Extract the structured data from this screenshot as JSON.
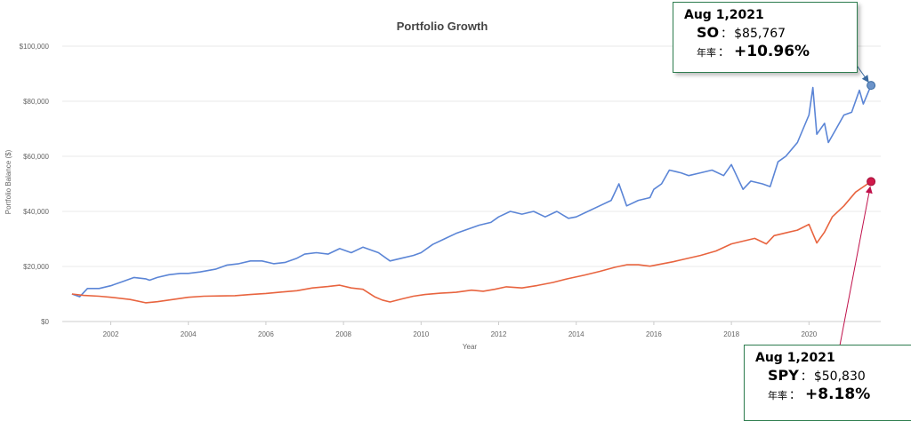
{
  "chart_data": {
    "type": "line",
    "title": "Portfolio Growth",
    "xlabel": "Year",
    "ylabel": "Portfolio Balance ($)",
    "xlim": [
      2000.75,
      2021.85
    ],
    "ylim": [
      0,
      100000
    ],
    "x_ticks": [
      "2002",
      "2004",
      "2006",
      "2008",
      "2010",
      "2012",
      "2014",
      "2016",
      "2018",
      "2020"
    ],
    "y_ticks": [
      "$0",
      "$20,000",
      "$40,000",
      "$60,000",
      "$80,000",
      "$100,000"
    ],
    "x_tick_values": [
      2002,
      2004,
      2006,
      2008,
      2010,
      2012,
      2014,
      2016,
      2018,
      2020
    ],
    "y_tick_values": [
      0,
      20000,
      40000,
      60000,
      80000,
      100000
    ],
    "series": [
      {
        "name": "SO",
        "color": "#5b85d6",
        "x": [
          2001.0,
          2001.2,
          2001.4,
          2001.7,
          2002.0,
          2002.3,
          2002.6,
          2002.9,
          2003.0,
          2003.2,
          2003.5,
          2003.8,
          2004.0,
          2004.3,
          2004.7,
          2005.0,
          2005.3,
          2005.6,
          2005.9,
          2006.2,
          2006.5,
          2006.8,
          2007.0,
          2007.3,
          2007.6,
          2007.9,
          2008.2,
          2008.5,
          2008.9,
          2009.2,
          2009.5,
          2009.8,
          2010.0,
          2010.3,
          2010.6,
          2010.9,
          2011.2,
          2011.5,
          2011.8,
          2012.0,
          2012.3,
          2012.6,
          2012.9,
          2013.2,
          2013.5,
          2013.8,
          2014.0,
          2014.3,
          2014.6,
          2014.9,
          2015.1,
          2015.3,
          2015.6,
          2015.9,
          2016.0,
          2016.2,
          2016.4,
          2016.7,
          2016.9,
          2017.2,
          2017.5,
          2017.8,
          2018.0,
          2018.3,
          2018.5,
          2018.8,
          2019.0,
          2019.2,
          2019.4,
          2019.7,
          2020.0,
          2020.1,
          2020.2,
          2020.4,
          2020.5,
          2020.7,
          2020.9,
          2021.1,
          2021.3,
          2021.4,
          2021.6
        ],
        "values": [
          10000,
          9000,
          12000,
          12000,
          13000,
          14500,
          16000,
          15500,
          15000,
          16000,
          17000,
          17500,
          17500,
          18000,
          19000,
          20500,
          21000,
          22000,
          22000,
          21000,
          21500,
          23000,
          24500,
          25000,
          24500,
          26500,
          25000,
          27000,
          25000,
          22000,
          23000,
          24000,
          25000,
          28000,
          30000,
          32000,
          33500,
          35000,
          36000,
          38000,
          40000,
          39000,
          40000,
          38000,
          40000,
          37500,
          38000,
          40000,
          42000,
          44000,
          50000,
          42000,
          44000,
          45000,
          48000,
          50000,
          55000,
          54000,
          53000,
          54000,
          55000,
          53000,
          57000,
          48000,
          51000,
          50000,
          49000,
          58000,
          60000,
          65000,
          75000,
          85000,
          68000,
          72000,
          65000,
          70000,
          75000,
          76000,
          84000,
          79000,
          85767
        ]
      },
      {
        "name": "SPY",
        "color": "#e8643f",
        "x": [
          2001.0,
          2001.3,
          2001.7,
          2002.0,
          2002.5,
          2002.9,
          2003.2,
          2003.6,
          2004.0,
          2004.4,
          2004.8,
          2005.2,
          2005.6,
          2006.0,
          2006.4,
          2006.8,
          2007.2,
          2007.6,
          2007.9,
          2008.2,
          2008.5,
          2008.8,
          2009.0,
          2009.2,
          2009.5,
          2009.8,
          2010.1,
          2010.5,
          2010.9,
          2011.3,
          2011.6,
          2011.9,
          2012.2,
          2012.6,
          2013.0,
          2013.4,
          2013.8,
          2014.2,
          2014.6,
          2015.0,
          2015.3,
          2015.6,
          2015.9,
          2016.2,
          2016.5,
          2016.8,
          2017.2,
          2017.6,
          2018.0,
          2018.3,
          2018.6,
          2018.9,
          2019.1,
          2019.4,
          2019.7,
          2020.0,
          2020.2,
          2020.4,
          2020.6,
          2020.9,
          2021.2,
          2021.6
        ],
        "values": [
          10000,
          9500,
          9200,
          8800,
          8000,
          6800,
          7200,
          8000,
          8800,
          9200,
          9300,
          9400,
          9800,
          10200,
          10700,
          11200,
          12200,
          12700,
          13200,
          12200,
          11700,
          9000,
          7800,
          7100,
          8200,
          9200,
          9800,
          10300,
          10600,
          11400,
          11000,
          11700,
          12600,
          12200,
          13100,
          14200,
          15600,
          16800,
          18200,
          19700,
          20600,
          20600,
          20100,
          20900,
          21700,
          22700,
          24000,
          25600,
          28200,
          29200,
          30200,
          28200,
          31200,
          32200,
          33200,
          35300,
          28500,
          32500,
          38000,
          42000,
          47000,
          50830
        ]
      }
    ],
    "annotations": [
      {
        "date": "Aug 1,2021",
        "ticker": "SO",
        "sep": "：",
        "value": "$85,767",
        "cagr_label": "年率",
        "cagr_sep": "：",
        "cagr": "+10.96%"
      },
      {
        "date": "Aug 1,2021",
        "ticker": "SPY",
        "sep": "：",
        "value": "$50,830",
        "cagr_label": "年率",
        "cagr_sep": "：",
        "cagr": "+8.18%"
      }
    ]
  }
}
